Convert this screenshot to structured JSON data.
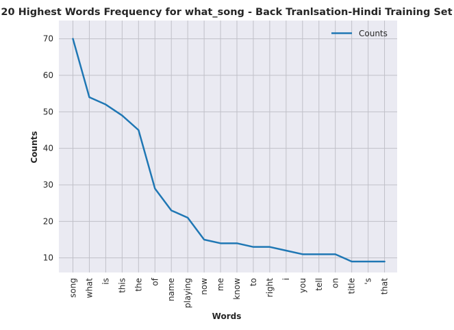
{
  "chart_data": {
    "type": "line",
    "title": "20 Highest Words Frequency for what_song - Back Tranlsation-Hindi Training Set",
    "xlabel": "Words",
    "ylabel": "Counts",
    "categories": [
      "song",
      "what",
      "is",
      "this",
      "the",
      "of",
      "name",
      "playing",
      "now",
      "me",
      "know",
      "to",
      "right",
      "i",
      "you",
      "tell",
      "on",
      "title",
      "'s",
      "that"
    ],
    "series": [
      {
        "name": "Counts",
        "values": [
          70,
          54,
          52,
          49,
          45,
          29,
          23,
          21,
          15,
          14,
          14,
          13,
          13,
          12,
          11,
          11,
          11,
          9,
          9,
          9
        ]
      }
    ],
    "yticks": [
      10,
      20,
      30,
      40,
      50,
      60,
      70
    ],
    "ylim": [
      6,
      75
    ],
    "grid": true,
    "legend_position": "top-right",
    "colors": {
      "line": "#1f77b4",
      "plot_bg": "#eaeaf2",
      "grid": "#c0c0c8"
    }
  }
}
